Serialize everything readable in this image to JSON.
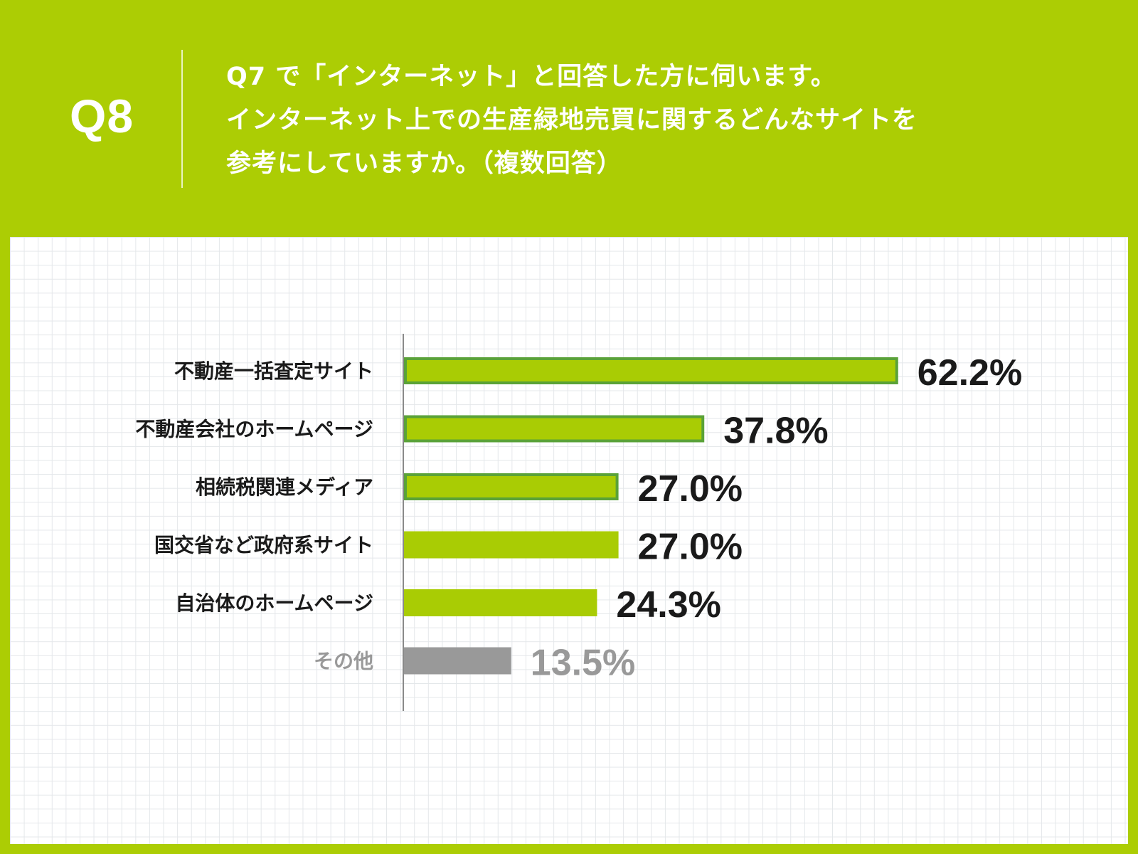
{
  "header": {
    "question_number": "Q8",
    "question_lines": [
      "Q7 で「インターネット」と回答した方に伺います。",
      "インターネット上での生産緑地売買に関するどんなサイトを",
      "参考にしていますか。（複数回答）"
    ]
  },
  "colors": {
    "background": "#accd04",
    "bar_fill": "#a9cc04",
    "bar_outline": "#5aa238",
    "bar_other": "#999999",
    "text": "#1a1a1a",
    "text_muted": "#999999",
    "axis": "#8a8a8a"
  },
  "chart_data": {
    "type": "bar",
    "orientation": "horizontal",
    "title": "",
    "xlabel": "",
    "ylabel": "",
    "xlim": [
      0,
      100
    ],
    "grid": true,
    "legend": "none",
    "unit": "%",
    "categories": [
      "不動産一括査定サイト",
      "不動産会社のホームページ",
      "相続税関連メディア",
      "国交省など政府系サイト",
      "自治体のホームページ",
      "その他"
    ],
    "values": [
      62.2,
      37.8,
      27.0,
      27.0,
      24.3,
      13.5
    ],
    "value_labels": [
      "62.2%",
      "37.8%",
      "27.0%",
      "27.0%",
      "24.3%",
      "13.5%"
    ],
    "highlighted": [
      true,
      true,
      true,
      false,
      false,
      false
    ],
    "muted": [
      false,
      false,
      false,
      false,
      false,
      true
    ]
  }
}
